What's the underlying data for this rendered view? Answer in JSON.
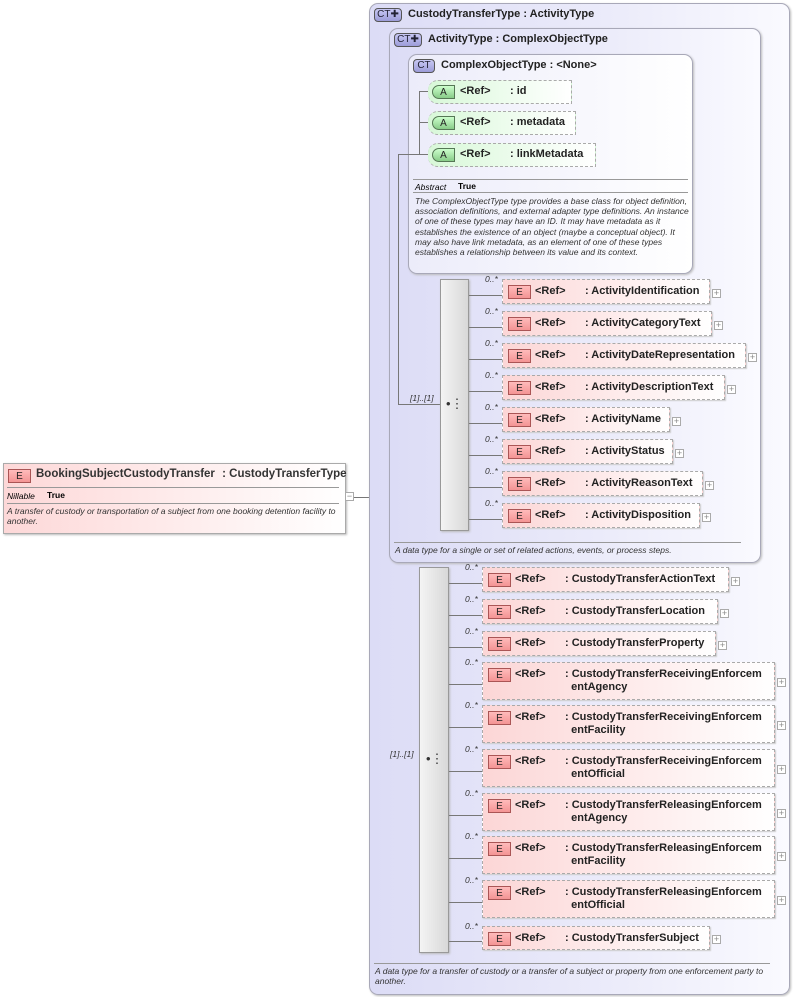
{
  "root": {
    "badge": "E",
    "name": "BookingSubjectCustodyTransfer",
    "type": ": CustodyTransferType",
    "prop_label": "Nillable",
    "prop_value": "True",
    "description": "A transfer of custody or transportation of a subject from one booking detention facility to another.",
    "toggle": "−"
  },
  "custody_type": {
    "badge": "CT",
    "header": "CustodyTransferType : ActivityType",
    "description": "A data type for a transfer of custody or a transfer of a subject or property from one enforcement party to another.",
    "sequence_multiplicity": "[1]..[1]",
    "elements": [
      {
        "badge": "E",
        "ref": "<Ref>",
        "name": ": CustodyTransferActionText",
        "mult": "0..*"
      },
      {
        "badge": "E",
        "ref": "<Ref>",
        "name": ": CustodyTransferLocation",
        "mult": "0..*"
      },
      {
        "badge": "E",
        "ref": "<Ref>",
        "name": ": CustodyTransferProperty",
        "mult": "0..*"
      },
      {
        "badge": "E",
        "ref": "<Ref>",
        "name": ": CustodyTransferReceivingEnforcem\n  entAgency",
        "mult": "0..*"
      },
      {
        "badge": "E",
        "ref": "<Ref>",
        "name": ": CustodyTransferReceivingEnforcem\n  entFacility",
        "mult": "0..*"
      },
      {
        "badge": "E",
        "ref": "<Ref>",
        "name": ": CustodyTransferReceivingEnforcem\n  entOfficial",
        "mult": "0..*"
      },
      {
        "badge": "E",
        "ref": "<Ref>",
        "name": ": CustodyTransferReleasingEnforcem\n  entAgency",
        "mult": "0..*"
      },
      {
        "badge": "E",
        "ref": "<Ref>",
        "name": ": CustodyTransferReleasingEnforcem\n  entFacility",
        "mult": "0..*"
      },
      {
        "badge": "E",
        "ref": "<Ref>",
        "name": ": CustodyTransferReleasingEnforcem\n  entOfficial",
        "mult": "0..*"
      },
      {
        "badge": "E",
        "ref": "<Ref>",
        "name": ": CustodyTransferSubject",
        "mult": "0..*"
      }
    ]
  },
  "activity_type": {
    "badge": "CT",
    "header": "ActivityType : ComplexObjectType",
    "description": "A data type for a single or set of related actions, events, or process steps.",
    "sequence_multiplicity": "[1]..[1]",
    "elements": [
      {
        "badge": "E",
        "ref": "<Ref>",
        "name": ": ActivityIdentification",
        "mult": "0..*"
      },
      {
        "badge": "E",
        "ref": "<Ref>",
        "name": ": ActivityCategoryText",
        "mult": "0..*"
      },
      {
        "badge": "E",
        "ref": "<Ref>",
        "name": ": ActivityDateRepresentation",
        "mult": "0..*"
      },
      {
        "badge": "E",
        "ref": "<Ref>",
        "name": ": ActivityDescriptionText",
        "mult": "0..*"
      },
      {
        "badge": "E",
        "ref": "<Ref>",
        "name": ": ActivityName",
        "mult": "0..*"
      },
      {
        "badge": "E",
        "ref": "<Ref>",
        "name": ": ActivityStatus",
        "mult": "0..*"
      },
      {
        "badge": "E",
        "ref": "<Ref>",
        "name": ": ActivityReasonText",
        "mult": "0..*"
      },
      {
        "badge": "E",
        "ref": "<Ref>",
        "name": ": ActivityDisposition",
        "mult": "0..*"
      }
    ]
  },
  "complex_object_type": {
    "badge": "CT",
    "header": "ComplexObjectType : <None>",
    "prop_label": "Abstract",
    "prop_value": "True",
    "description": "The ComplexObjectType type provides a base class for object definition, association definitions, and external adapter type definitions. An instance of one of these types may have an ID. It may have metadata as it establishes the existence of an object (maybe a conceptual object). It may also have link metadata, as an element of one of these types establishes a relationship between its value and its context.",
    "attributes": [
      {
        "badge": "A",
        "ref": "<Ref>",
        "name": ": id"
      },
      {
        "badge": "A",
        "ref": "<Ref>",
        "name": ": metadata"
      },
      {
        "badge": "A",
        "ref": "<Ref>",
        "name": ": linkMetadata"
      }
    ]
  }
}
